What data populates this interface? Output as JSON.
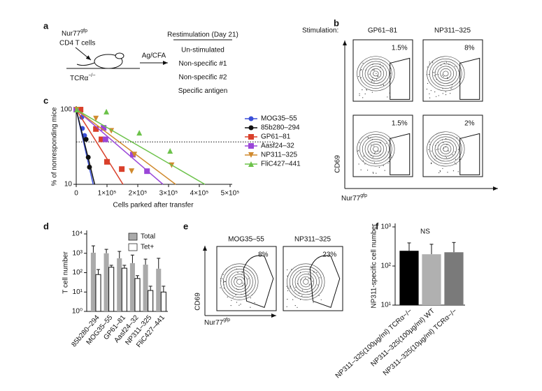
{
  "panel_labels": [
    "a",
    "b",
    "c",
    "d",
    "e",
    "f"
  ],
  "a": {
    "reporter": "Nur77",
    "reporter_sup": "gfp",
    "cells": "CD4 T cells",
    "host": "TCRα",
    "host_sup": "−/−",
    "immunization": "Ag/CFA",
    "restim_title": "Restimulation (Day 21)",
    "restim_items": [
      "Un-stimulated",
      "Non-specific #1",
      "Non-specific #2",
      "Specific antigen"
    ]
  },
  "b": {
    "stimulation_label": "Stimulation:",
    "columns": [
      "GP61–81",
      "NP311–325"
    ],
    "gates": [
      [
        "1.5%",
        "8%"
      ],
      [
        "1.5%",
        "2%"
      ]
    ],
    "y_label": "CD69",
    "x_label": "Nur77",
    "x_label_sup": "gfp"
  },
  "e": {
    "columns": [
      "MOG35–55",
      "NP311–325"
    ],
    "gates": [
      "8%",
      "23%"
    ],
    "y_label": "CD69",
    "x_label": "Nur77",
    "x_label_sup": "gfp"
  },
  "chart_data": [
    {
      "type": "scatter",
      "y_label": "% of nonresponding mice",
      "x_label": "Cells parked after transfer",
      "xlim": [
        0,
        500000
      ],
      "ylim": [
        10,
        100
      ],
      "log_y": true,
      "xticks": [
        0,
        {
          "value": 100000,
          "label": "1×10⁵"
        },
        {
          "value": 200000,
          "label": "2×10⁵"
        },
        {
          "value": 300000,
          "label": "3×10⁵"
        },
        {
          "value": 400000,
          "label": "4×10⁵"
        },
        {
          "value": 500000,
          "label": "5×10⁵"
        }
      ],
      "yticks": [
        10,
        100
      ],
      "hline": 37,
      "series": [
        {
          "name": "MOG35–55",
          "color": "#3a4fd8",
          "marker": "circle",
          "x": [
            0,
            18000,
            20000,
            27000
          ],
          "values": [
            100,
            79,
            56,
            45
          ],
          "fit_x": [
            0,
            55000
          ],
          "fit_values": [
            100,
            10
          ]
        },
        {
          "name": "85b280–294",
          "color": "#111111",
          "marker": "circle",
          "x": [
            7000,
            32000,
            39000,
            43000
          ],
          "values": [
            100,
            40,
            23,
            17
          ],
          "fit_x": [
            0,
            60000
          ],
          "fit_values": [
            100,
            10
          ]
        },
        {
          "name": "GP61–81",
          "color": "#d9402b",
          "marker": "square",
          "x": [
            14000,
            64000,
            82000,
            100000,
            148000
          ],
          "values": [
            100,
            55,
            40,
            20,
            16
          ],
          "fit_x": [
            0,
            152000
          ],
          "fit_values": [
            100,
            10
          ]
        },
        {
          "name": "Aasf24–32",
          "color": "#9a46d8",
          "marker": "square",
          "x": [
            0,
            89000,
            95000,
            184000,
            230000
          ],
          "values": [
            100,
            57,
            40,
            25,
            15
          ],
          "fit_x": [
            0,
            282000
          ],
          "fit_values": [
            100,
            10
          ]
        },
        {
          "name": "NP311–325",
          "color": "#d08a2e",
          "marker": "triangle-down",
          "x": [
            2000,
            64000,
            114000,
            189000,
            180000,
            310000
          ],
          "values": [
            100,
            76,
            52,
            25,
            15,
            18
          ],
          "fit_x": [
            0,
            323000
          ],
          "fit_values": [
            100,
            10
          ]
        },
        {
          "name": "FliC427–441",
          "color": "#6cc24a",
          "marker": "triangle-up",
          "x": [
            2000,
            98000,
            205000,
            305000
          ],
          "values": [
            100,
            94,
            49,
            28
          ],
          "fit_x": [
            0,
            418000
          ],
          "fit_values": [
            100,
            10
          ]
        }
      ]
    },
    {
      "type": "bar",
      "y_label": "T cell number",
      "ylim": [
        1,
        10000
      ],
      "log_y": true,
      "yticks": [
        {
          "value": 1,
          "label": "10⁰"
        },
        {
          "value": 10,
          "label": "10¹"
        },
        {
          "value": 100,
          "label": "10²"
        },
        {
          "value": 1000,
          "label": "10³"
        },
        {
          "value": 10000,
          "label": "10⁴"
        }
      ],
      "categories": [
        "85b280–294",
        "MOG35–55",
        "GP61–81",
        "Aasf24–32",
        "NP311–325",
        "FliC427–441"
      ],
      "series": [
        {
          "name": "Total",
          "color": "#aaaaaa",
          "values": [
            1070,
            1000,
            550,
            310,
            260,
            160
          ],
          "errors": [
            1350,
            600,
            700,
            500,
            240,
            390
          ]
        },
        {
          "name": "Tet+",
          "color": "#ffffff",
          "values": [
            80,
            190,
            170,
            50,
            12,
            10
          ],
          "errors": [
            65,
            50,
            70,
            20,
            8,
            10
          ]
        }
      ]
    },
    {
      "type": "bar",
      "y_label": "NP311-specific cell number",
      "ylim": [
        10,
        1000
      ],
      "log_y": true,
      "yticks": [
        {
          "value": 10,
          "label": "10¹"
        },
        {
          "value": 100,
          "label": "10²"
        },
        {
          "value": 1000,
          "label": "10³"
        }
      ],
      "annotation": "NS",
      "categories": [
        "NP311–325(100μg/ml) TCRα−/−",
        "NP311–325(100μg/ml) WT",
        "NP311–325(10μg/ml) TCRα−/−"
      ],
      "series": [
        {
          "colors": [
            "#000000",
            "#b0b0b0",
            "#7a7a7a"
          ],
          "values": [
            245,
            200,
            225
          ],
          "errors": [
            145,
            160,
            175
          ]
        }
      ]
    }
  ]
}
